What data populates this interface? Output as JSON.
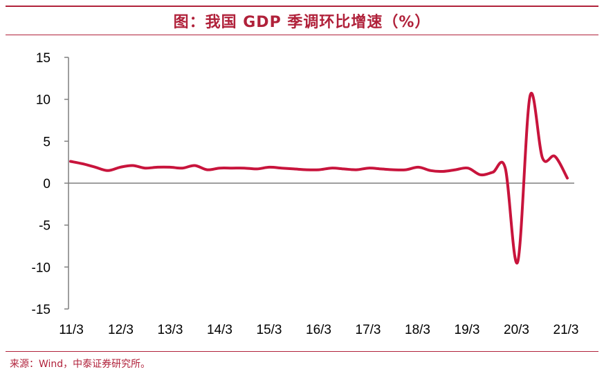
{
  "header": {
    "title": "图：我国 GDP 季调环比增速（%）"
  },
  "footer": {
    "source": "来源：Wind，中泰证券研究所。"
  },
  "colors": {
    "accent": "#b0213a",
    "series": "#c8143c",
    "axis": "#7f7f7f"
  },
  "chart_data": {
    "type": "line",
    "title": "图：我国 GDP 季调环比增速（%）",
    "xlabel": "",
    "ylabel": "",
    "ylim": [
      -15,
      15
    ],
    "yticks": [
      15,
      10,
      5,
      0,
      -5,
      -10,
      -15
    ],
    "xtick_labels": [
      "11/3",
      "12/3",
      "13/3",
      "14/3",
      "15/3",
      "16/3",
      "17/3",
      "18/3",
      "19/3",
      "20/3",
      "21/3"
    ],
    "grid": false,
    "legend": "none",
    "series": [
      {
        "values": [
          2.6,
          2.3,
          1.9,
          1.5,
          1.9,
          2.1,
          1.8,
          1.9,
          1.9,
          1.8,
          2.1,
          1.6,
          1.8,
          1.8,
          1.8,
          1.7,
          1.9,
          1.8,
          1.7,
          1.6,
          1.6,
          1.8,
          1.7,
          1.6,
          1.8,
          1.7,
          1.6,
          1.6,
          1.9,
          1.5,
          1.4,
          1.6,
          1.8,
          1.0,
          1.3,
          1.8,
          -9.4,
          10.4,
          3.0,
          3.2,
          0.6
        ]
      }
    ]
  }
}
